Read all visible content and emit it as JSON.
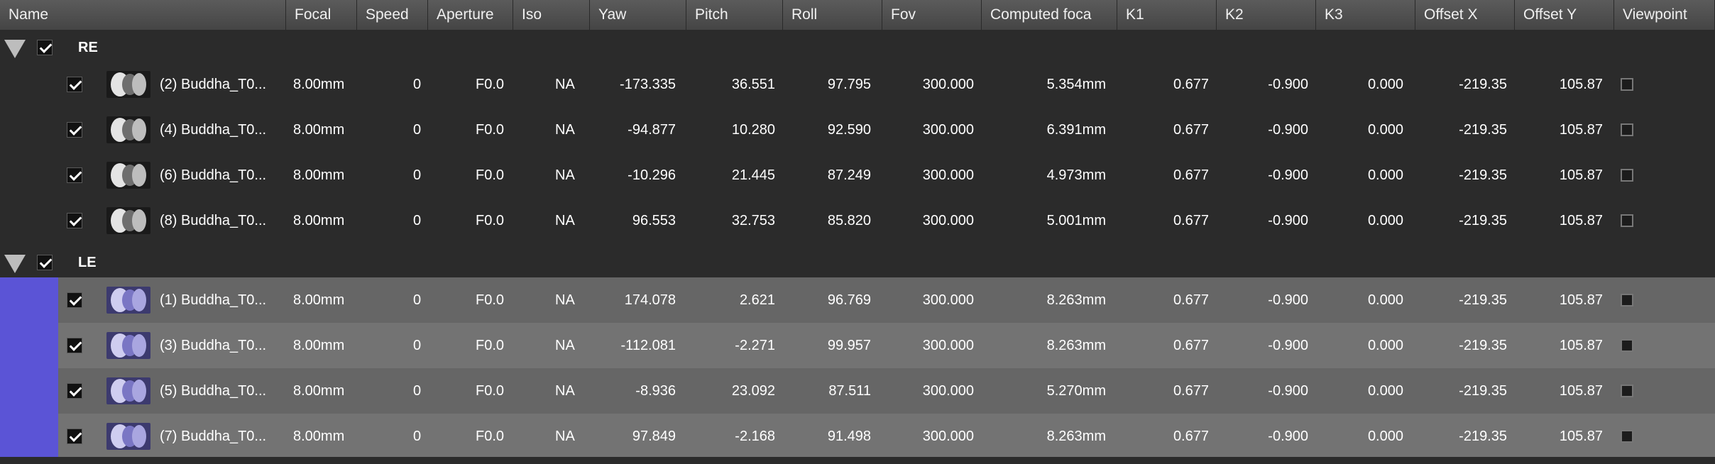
{
  "columns": [
    "Name",
    "Focal",
    "Speed",
    "Aperture",
    "Iso",
    "Yaw",
    "Pitch",
    "Roll",
    "Fov",
    "Computed foca",
    "K1",
    "K2",
    "K3",
    "Offset X",
    "Offset Y",
    "Viewpoint"
  ],
  "groups": [
    {
      "name": "RE",
      "rows": [
        {
          "name": "(2) Buddha_T0...",
          "focal": "8.00mm",
          "speed": "0",
          "aperture": "F0.0",
          "iso": "NA",
          "yaw": "-173.335",
          "pitch": "36.551",
          "roll": "97.795",
          "fov": "300.000",
          "computed": "5.354mm",
          "k1": "0.677",
          "k2": "-0.900",
          "k3": "0.000",
          "offx": "-219.35",
          "offy": "105.87"
        },
        {
          "name": "(4) Buddha_T0...",
          "focal": "8.00mm",
          "speed": "0",
          "aperture": "F0.0",
          "iso": "NA",
          "yaw": "-94.877",
          "pitch": "10.280",
          "roll": "92.590",
          "fov": "300.000",
          "computed": "6.391mm",
          "k1": "0.677",
          "k2": "-0.900",
          "k3": "0.000",
          "offx": "-219.35",
          "offy": "105.87"
        },
        {
          "name": "(6) Buddha_T0...",
          "focal": "8.00mm",
          "speed": "0",
          "aperture": "F0.0",
          "iso": "NA",
          "yaw": "-10.296",
          "pitch": "21.445",
          "roll": "87.249",
          "fov": "300.000",
          "computed": "4.973mm",
          "k1": "0.677",
          "k2": "-0.900",
          "k3": "0.000",
          "offx": "-219.35",
          "offy": "105.87"
        },
        {
          "name": "(8) Buddha_T0...",
          "focal": "8.00mm",
          "speed": "0",
          "aperture": "F0.0",
          "iso": "NA",
          "yaw": "96.553",
          "pitch": "32.753",
          "roll": "85.820",
          "fov": "300.000",
          "computed": "5.001mm",
          "k1": "0.677",
          "k2": "-0.900",
          "k3": "0.000",
          "offx": "-219.35",
          "offy": "105.87"
        }
      ]
    },
    {
      "name": "LE",
      "rows": [
        {
          "name": "(1) Buddha_T0...",
          "focal": "8.00mm",
          "speed": "0",
          "aperture": "F0.0",
          "iso": "NA",
          "yaw": "174.078",
          "pitch": "2.621",
          "roll": "96.769",
          "fov": "300.000",
          "computed": "8.263mm",
          "k1": "0.677",
          "k2": "-0.900",
          "k3": "0.000",
          "offx": "-219.35",
          "offy": "105.87"
        },
        {
          "name": "(3) Buddha_T0...",
          "focal": "8.00mm",
          "speed": "0",
          "aperture": "F0.0",
          "iso": "NA",
          "yaw": "-112.081",
          "pitch": "-2.271",
          "roll": "99.957",
          "fov": "300.000",
          "computed": "8.263mm",
          "k1": "0.677",
          "k2": "-0.900",
          "k3": "0.000",
          "offx": "-219.35",
          "offy": "105.87"
        },
        {
          "name": "(5) Buddha_T0...",
          "focal": "8.00mm",
          "speed": "0",
          "aperture": "F0.0",
          "iso": "NA",
          "yaw": "-8.936",
          "pitch": "23.092",
          "roll": "87.511",
          "fov": "300.000",
          "computed": "5.270mm",
          "k1": "0.677",
          "k2": "-0.900",
          "k3": "0.000",
          "offx": "-219.35",
          "offy": "105.87"
        },
        {
          "name": "(7) Buddha_T0...",
          "focal": "8.00mm",
          "speed": "0",
          "aperture": "F0.0",
          "iso": "NA",
          "yaw": "97.849",
          "pitch": "-2.168",
          "roll": "91.498",
          "fov": "300.000",
          "computed": "8.263mm",
          "k1": "0.677",
          "k2": "-0.900",
          "k3": "0.000",
          "offx": "-219.35",
          "offy": "105.87"
        }
      ]
    }
  ],
  "colors": {
    "group_highlight": "#5b54d6",
    "header_bg": "#4e4e4e",
    "row_bg": "#2b2b2b",
    "selected_row_a": "#666666",
    "selected_row_b": "#737373"
  },
  "icons": {
    "collapse": "triangle-down-icon",
    "check": "checkmark-icon",
    "thumbnail": "image-thumbnail-icon",
    "viewpoint": "checkbox-empty-icon",
    "sort": "sort-arrow-icon"
  }
}
